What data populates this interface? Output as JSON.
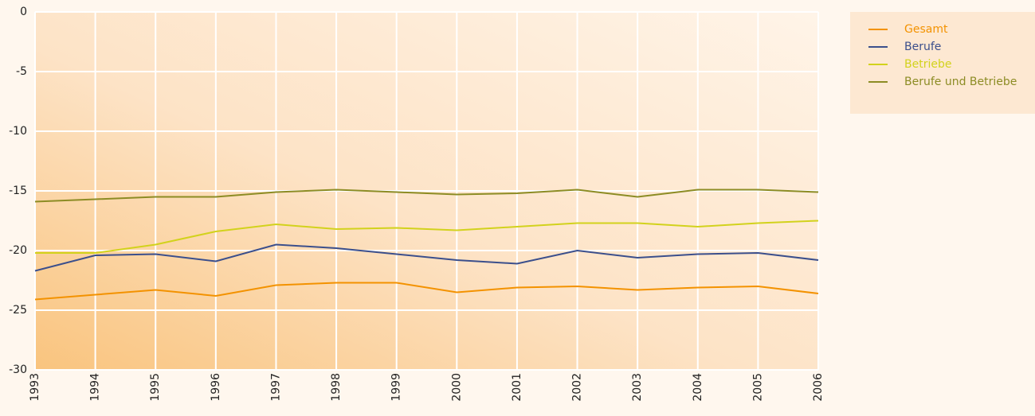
{
  "chart_data": {
    "type": "line",
    "categories": [
      "1993",
      "1994",
      "1995",
      "1996",
      "1997",
      "1998",
      "1999",
      "2000",
      "2001",
      "2002",
      "2003",
      "2004",
      "2005",
      "2006"
    ],
    "series": [
      {
        "name": "Gesamt",
        "color": "#f39200",
        "values": [
          -24.1,
          -23.7,
          -23.3,
          -23.8,
          -22.9,
          -22.7,
          -22.7,
          -23.5,
          -23.1,
          -23.0,
          -23.3,
          -23.1,
          -23.0,
          -23.6
        ]
      },
      {
        "name": "Berufe",
        "color": "#3b4f8c",
        "values": [
          -21.7,
          -20.4,
          -20.3,
          -20.9,
          -19.5,
          -19.8,
          -20.3,
          -20.8,
          -21.1,
          -20.0,
          -20.6,
          -20.3,
          -20.2,
          -20.8
        ]
      },
      {
        "name": "Betriebe",
        "color": "#d2d21c",
        "values": [
          -20.2,
          -20.2,
          -19.5,
          -18.4,
          -17.8,
          -18.2,
          -18.1,
          -18.3,
          -18.0,
          -17.7,
          -17.7,
          -18.0,
          -17.7,
          -17.5
        ]
      },
      {
        "name": "Berufe und Betriebe",
        "color": "#8c8c24",
        "values": [
          -15.9,
          -15.7,
          -15.5,
          -15.5,
          -15.1,
          -14.9,
          -15.1,
          -15.3,
          -15.2,
          -14.9,
          -15.5,
          -14.9,
          -14.9,
          -15.1
        ]
      }
    ],
    "ylim": [
      -30,
      0
    ],
    "yticks": [
      0,
      -5,
      -10,
      -15,
      -20,
      -25,
      -30
    ],
    "grid": true,
    "legend": "right"
  }
}
